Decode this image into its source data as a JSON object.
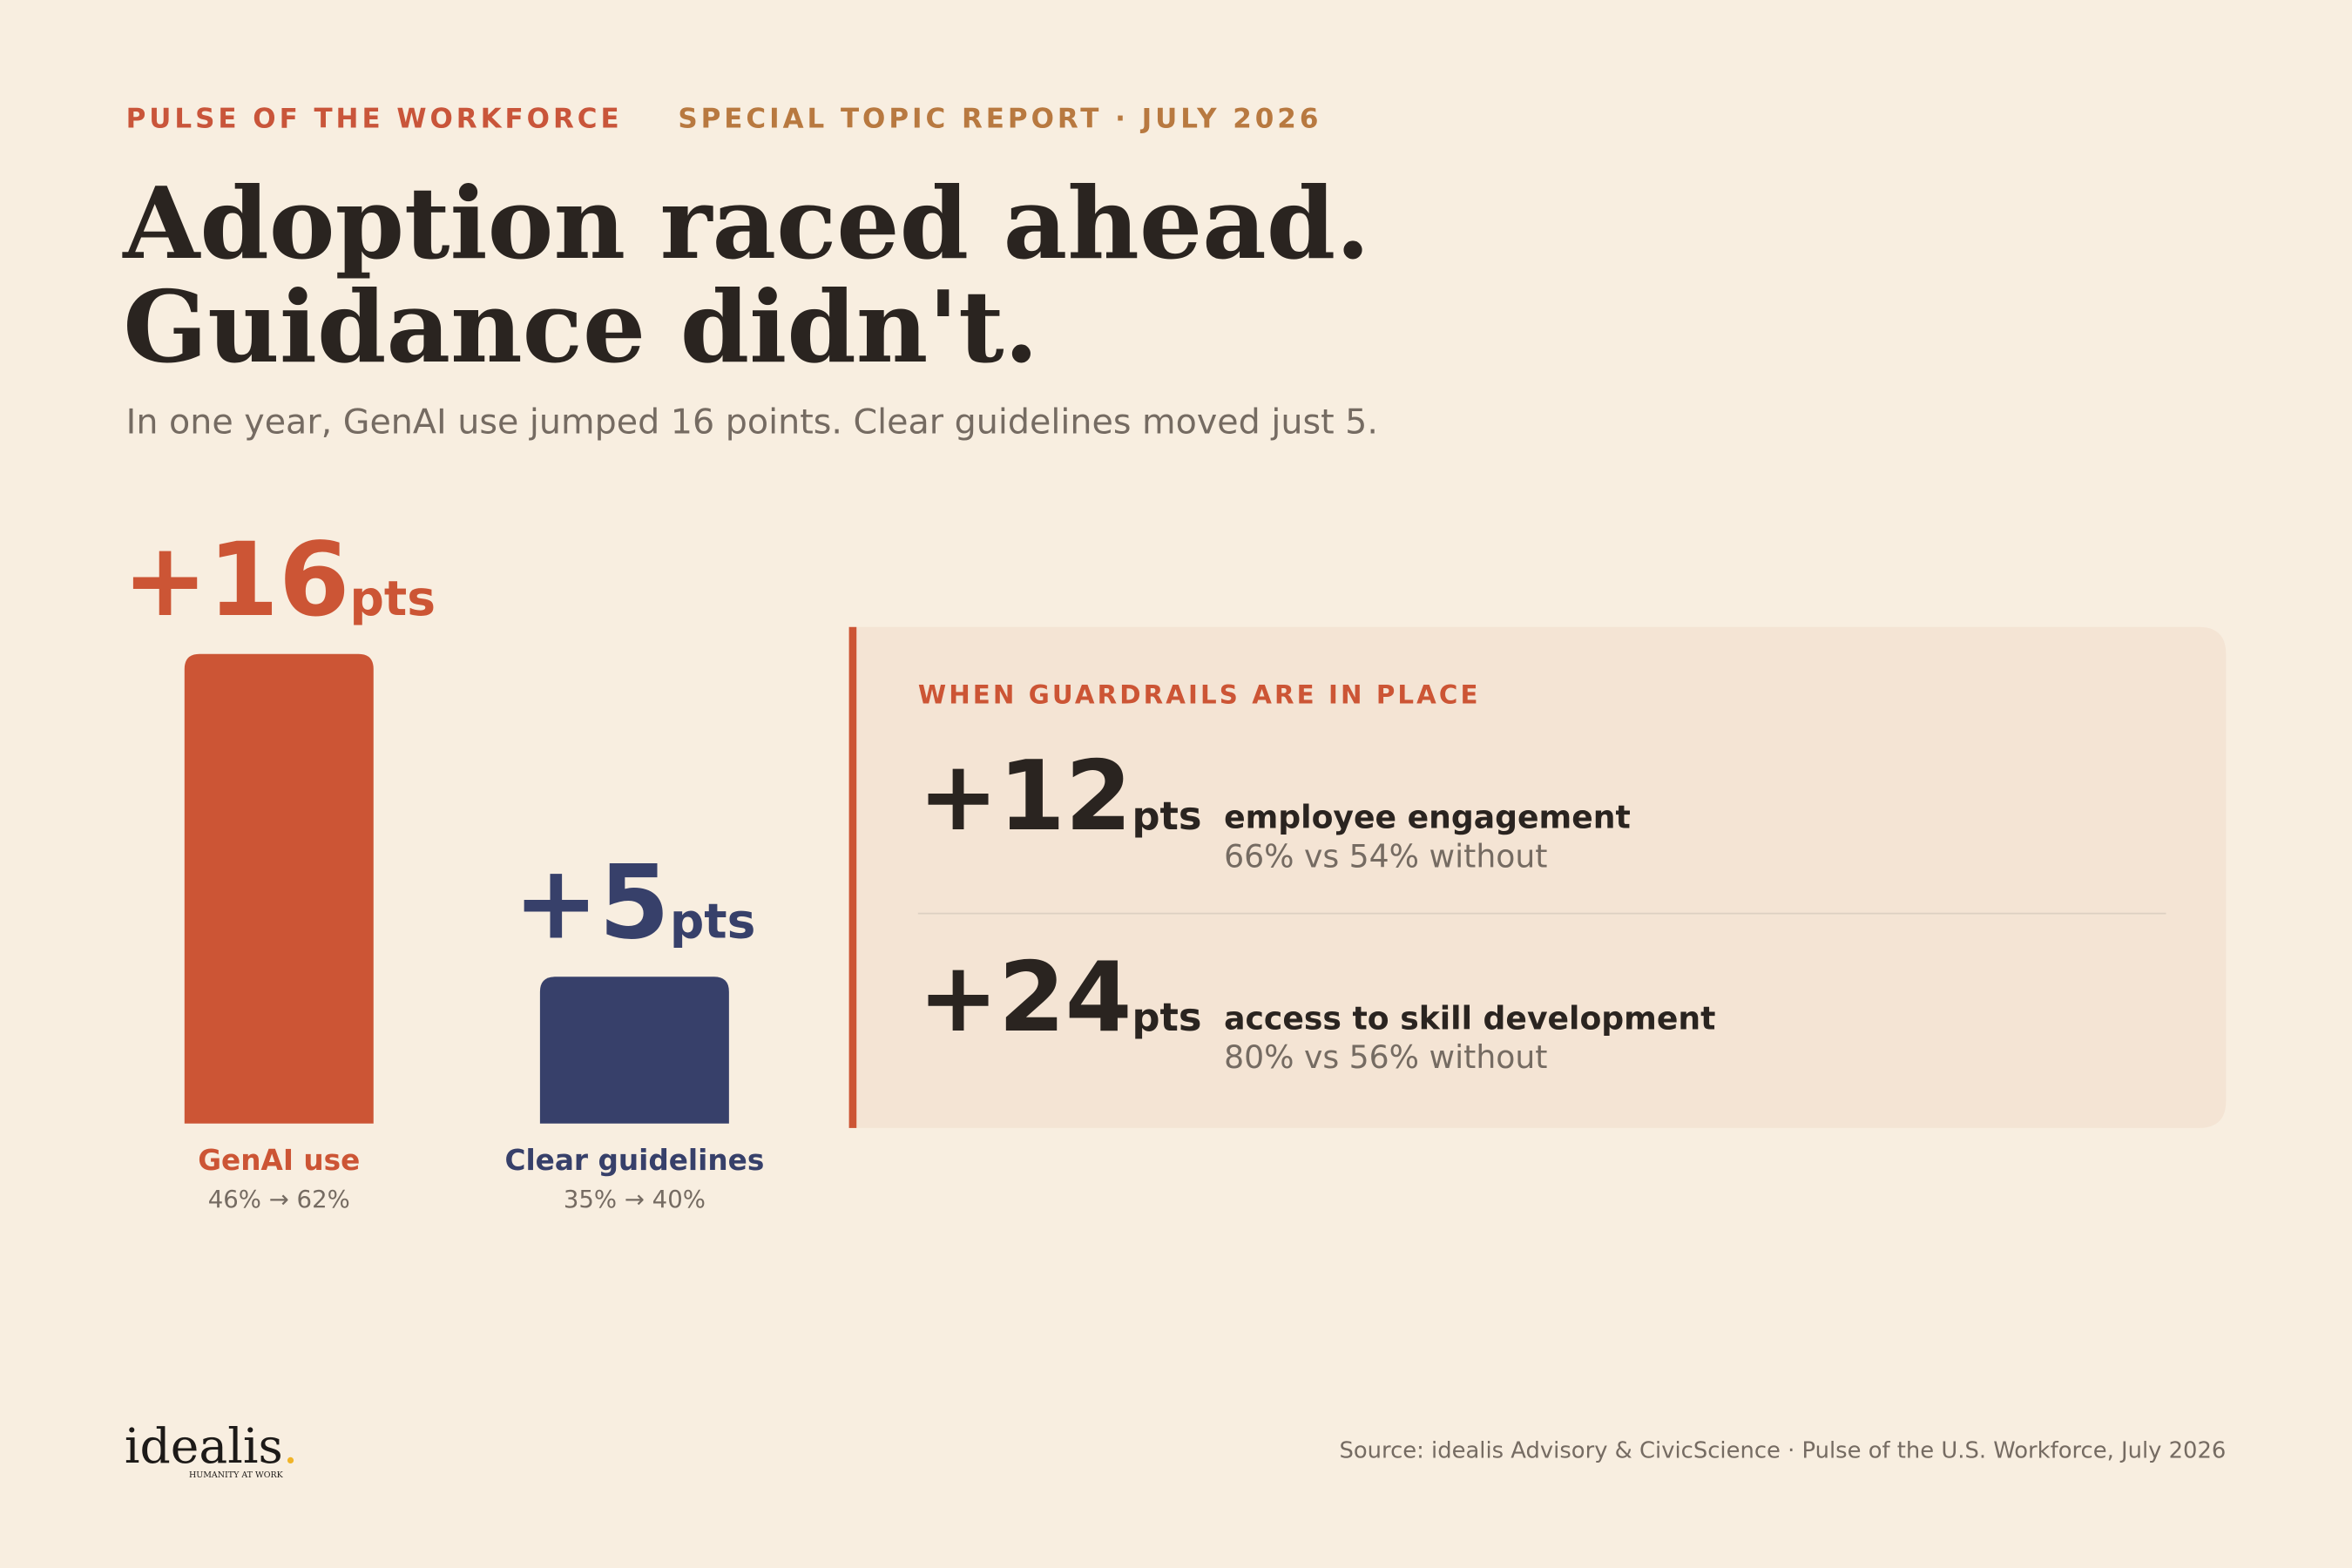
{
  "header": {
    "eyebrow": "PULSE OF THE WORKFORCE",
    "eyebrow_detail": "SPECIAL TOPIC REPORT · JULY 2026",
    "title_lines": [
      "Adoption raced ahead.",
      "Guidance didn't."
    ],
    "subtitle": "In one year, GenAI use jumped 16 points. Clear guidelines moved just 5."
  },
  "chart_data": {
    "type": "bar",
    "categories": [
      "GenAI use",
      "Clear guidelines"
    ],
    "values": [
      16,
      5
    ],
    "value_labels": [
      "+16",
      "+5"
    ],
    "value_unit": "pts",
    "category_notes": [
      "46% → 62%",
      "35% → 40%"
    ],
    "colors": [
      "#cc5535",
      "#37406a"
    ]
  },
  "guardrails": {
    "heading": "WHEN GUARDRAILS ARE IN PLACE",
    "stats": [
      {
        "value_label": "+12",
        "unit": "pts",
        "label": "employee engagement",
        "detail": "66% vs 54% without"
      },
      {
        "value_label": "+24",
        "unit": "pts",
        "label": "access to skill development",
        "detail": "80% vs 56% without"
      }
    ]
  },
  "footer": {
    "logo": "idealis",
    "logo_mark": ".",
    "logo_tagline": "HUMANITY AT WORK",
    "source": "Source: idealis Advisory & CivicScience · Pulse of the U.S. Workforce, July 2026"
  }
}
